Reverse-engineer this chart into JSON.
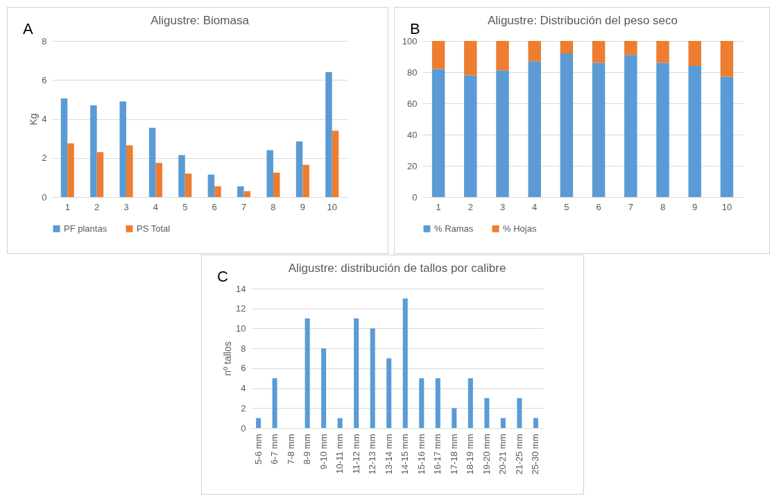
{
  "chart_data": [
    {
      "type": "bar",
      "title": "Aligustre: Biomasa",
      "ylabel": "Kg",
      "annotations": [
        "A"
      ],
      "categories": [
        "1",
        "2",
        "3",
        "4",
        "5",
        "6",
        "7",
        "8",
        "9",
        "10"
      ],
      "series": [
        {
          "name": "PF plantas",
          "color": "#5b9bd5",
          "values": [
            5.05,
            4.7,
            4.9,
            3.55,
            2.15,
            1.15,
            0.55,
            2.4,
            2.85,
            6.4
          ]
        },
        {
          "name": "PS Total",
          "color": "#ed7d31",
          "values": [
            2.75,
            2.3,
            2.65,
            1.75,
            1.2,
            0.55,
            0.3,
            1.25,
            1.65,
            3.4
          ]
        }
      ],
      "ylim": [
        0,
        8
      ],
      "yticks": [
        0,
        2,
        4,
        6,
        8
      ],
      "grid": "y",
      "legend": "bottom"
    },
    {
      "type": "bar",
      "title": "Aligustre: Distribución del peso seco",
      "annotations": [
        "B"
      ],
      "categories": [
        "1",
        "2",
        "3",
        "4",
        "5",
        "6",
        "7",
        "8",
        "9",
        "10"
      ],
      "stacked": true,
      "series": [
        {
          "name": "% Ramas",
          "color": "#5b9bd5",
          "values": [
            82,
            78,
            81,
            87,
            92,
            86,
            91,
            86,
            84,
            77
          ]
        },
        {
          "name": "% Hojas",
          "color": "#ed7d31",
          "values": [
            18,
            22,
            19,
            13,
            8,
            14,
            9,
            14,
            16,
            23
          ]
        }
      ],
      "ylim": [
        0,
        100
      ],
      "yticks": [
        0,
        20,
        40,
        60,
        80,
        100
      ],
      "grid": "y",
      "legend": "bottom"
    },
    {
      "type": "bar",
      "title": "Aligustre: distribución de tallos por calibre",
      "ylabel": "nº tallos",
      "annotations": [
        "C"
      ],
      "categories": [
        "5-6 mm",
        "6-7 mm",
        "7-8 mm",
        "8-9 mm",
        "9-10 mm",
        "10-11 mm",
        "11-12 mm",
        "12-13 mm",
        "13-14 mm",
        "14-15 mm",
        "15-16 mm",
        "16-17 mm",
        "17-18 mm",
        "18-19 mm",
        "19-20 mm",
        "20-21 mm",
        "21-25 mm",
        "25-30 mm"
      ],
      "color": "#5b9bd5",
      "values": [
        1,
        5,
        0,
        11,
        8,
        1,
        11,
        10,
        7,
        13,
        5,
        5,
        2,
        5,
        3,
        1,
        3,
        1
      ],
      "ylim": [
        0,
        14
      ],
      "yticks": [
        0,
        2,
        4,
        6,
        8,
        10,
        12,
        14
      ],
      "grid": "y"
    }
  ]
}
